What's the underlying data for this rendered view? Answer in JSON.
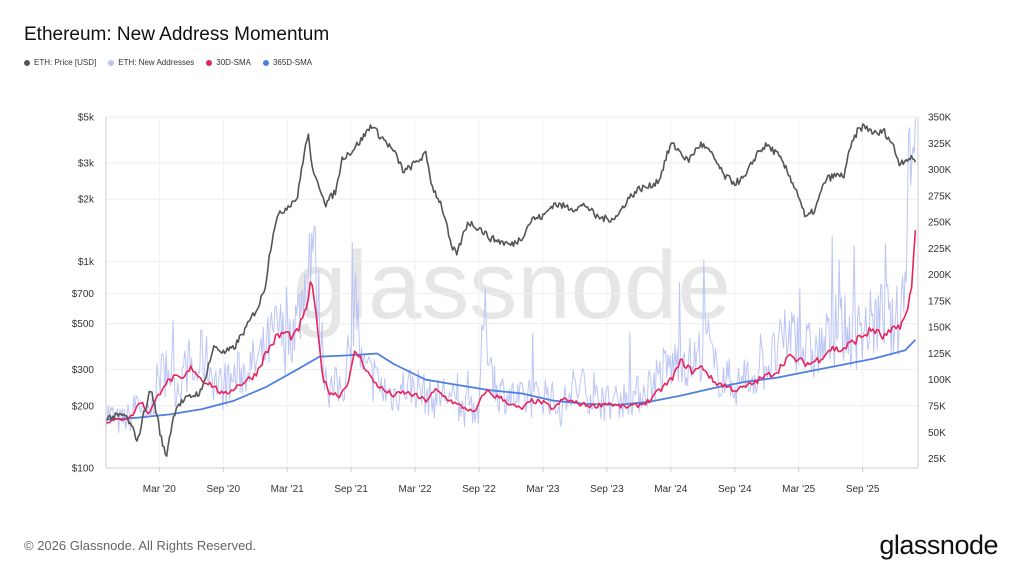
{
  "page": {
    "title": "Ethereum: New Address Momentum",
    "copyright": "© 2026 Glassnode. All Rights Reserved.",
    "logo": "glassnode",
    "watermark": "glassnode"
  },
  "chart_data": {
    "type": "line",
    "title": "Ethereum: New Address Momentum",
    "legend": [
      {
        "name": "ETH: Price [USD]",
        "color": "#555555"
      },
      {
        "name": "ETH: New Addresses",
        "color": "#b8c2f4"
      },
      {
        "name": "30D-SMA",
        "color": "#e8245b"
      },
      {
        "name": "365D-SMA",
        "color": "#4f7fe0"
      }
    ],
    "x_ticks": [
      "Mar '20",
      "Sep '20",
      "Mar '21",
      "Sep '21",
      "Mar '22",
      "Sep '22",
      "Mar '23",
      "Sep '23",
      "Mar '24",
      "Sep '24",
      "Mar '25",
      "Sep '25"
    ],
    "x_tick_t": [
      2020.167,
      2020.667,
      2021.167,
      2021.667,
      2022.167,
      2022.667,
      2023.167,
      2023.667,
      2024.167,
      2024.667,
      2025.167,
      2025.667
    ],
    "xlim": [
      2019.75,
      2026.1
    ],
    "y_left": {
      "scale": "log",
      "lim": [
        100,
        5000
      ],
      "ticks": [
        {
          "v": 5000,
          "label": "$5k"
        },
        {
          "v": 3000,
          "label": "$3k"
        },
        {
          "v": 2000,
          "label": "$2k"
        },
        {
          "v": 1000,
          "label": "$1k"
        },
        {
          "v": 700,
          "label": "$700"
        },
        {
          "v": 500,
          "label": "$500"
        },
        {
          "v": 300,
          "label": "$300"
        },
        {
          "v": 200,
          "label": "$200"
        },
        {
          "v": 100,
          "label": "$100"
        }
      ]
    },
    "y_right": {
      "scale": "linear",
      "lim": [
        16000,
        350000
      ],
      "ticks": [
        {
          "v": 350000,
          "label": "350K"
        },
        {
          "v": 325000,
          "label": "325K"
        },
        {
          "v": 300000,
          "label": "300K"
        },
        {
          "v": 275000,
          "label": "275K"
        },
        {
          "v": 250000,
          "label": "250K"
        },
        {
          "v": 225000,
          "label": "225K"
        },
        {
          "v": 200000,
          "label": "200K"
        },
        {
          "v": 175000,
          "label": "175K"
        },
        {
          "v": 150000,
          "label": "150K"
        },
        {
          "v": 125000,
          "label": "125K"
        },
        {
          "v": 100000,
          "label": "100K"
        },
        {
          "v": 75000,
          "label": "75K"
        },
        {
          "v": 50000,
          "label": "50K"
        },
        {
          "v": 25000,
          "label": "25K"
        }
      ]
    },
    "price": {
      "t": [
        2019.75,
        2019.9,
        2020.0,
        2020.1,
        2020.18,
        2020.22,
        2020.3,
        2020.4,
        2020.5,
        2020.6,
        2020.67,
        2020.75,
        2020.85,
        2020.95,
        2021.0,
        2021.08,
        2021.15,
        2021.25,
        2021.33,
        2021.37,
        2021.42,
        2021.47,
        2021.55,
        2021.6,
        2021.67,
        2021.75,
        2021.83,
        2021.87,
        2021.92,
        2022.0,
        2022.08,
        2022.17,
        2022.25,
        2022.3,
        2022.37,
        2022.45,
        2022.5,
        2022.58,
        2022.67,
        2022.75,
        2022.83,
        2022.92,
        2023.0,
        2023.08,
        2023.17,
        2023.25,
        2023.33,
        2023.42,
        2023.5,
        2023.58,
        2023.67,
        2023.75,
        2023.83,
        2023.92,
        2024.0,
        2024.08,
        2024.17,
        2024.22,
        2024.3,
        2024.4,
        2024.45,
        2024.5,
        2024.58,
        2024.67,
        2024.75,
        2024.85,
        2024.92,
        2025.0,
        2025.08,
        2025.17,
        2025.22,
        2025.3,
        2025.38,
        2025.45,
        2025.52,
        2025.58,
        2025.63,
        2025.67,
        2025.72,
        2025.78,
        2025.83,
        2025.9,
        2025.95,
        2026.02,
        2026.08
      ],
      "v": [
        175,
        180,
        135,
        240,
        140,
        112,
        200,
        220,
        235,
        390,
        360,
        380,
        480,
        620,
        780,
        1600,
        1800,
        2050,
        4100,
        2600,
        2300,
        1900,
        2200,
        3200,
        3400,
        3900,
        4600,
        4200,
        3900,
        3400,
        2700,
        3000,
        3300,
        2300,
        1900,
        1150,
        1100,
        1550,
        1450,
        1300,
        1250,
        1200,
        1300,
        1600,
        1650,
        1900,
        1850,
        1800,
        1880,
        1650,
        1600,
        1650,
        2000,
        2250,
        2300,
        2500,
        3700,
        3500,
        3050,
        3700,
        3500,
        3200,
        2600,
        2400,
        2550,
        3400,
        3650,
        3300,
        2700,
        2050,
        1600,
        1800,
        2500,
        2600,
        2600,
        3650,
        4300,
        4500,
        4350,
        4100,
        4300,
        3700,
        3000,
        3150,
        3100
      ]
    },
    "new_addresses": {
      "t": [
        2019.75,
        2019.85,
        2019.95,
        2020.0,
        2020.05,
        2020.1,
        2020.17,
        2020.25,
        2020.3,
        2020.4,
        2020.45,
        2020.5,
        2020.55,
        2020.6,
        2020.67,
        2020.75,
        2020.85,
        2020.95,
        2021.05,
        2021.1,
        2021.15,
        2021.25,
        2021.3,
        2021.36,
        2021.4,
        2021.45,
        2021.5,
        2021.6,
        2021.67,
        2021.7,
        2021.75,
        2021.8,
        2021.9,
        2022.0,
        2022.1,
        2022.2,
        2022.3,
        2022.4,
        2022.5,
        2022.55,
        2022.6,
        2022.67,
        2022.7,
        2022.8,
        2022.9,
        2023.0,
        2023.1,
        2023.2,
        2023.3,
        2023.4,
        2023.5,
        2023.6,
        2023.7,
        2023.8,
        2023.9,
        2024.0,
        2024.1,
        2024.2,
        2024.25,
        2024.3,
        2024.38,
        2024.45,
        2024.5,
        2024.6,
        2024.7,
        2024.8,
        2024.9,
        2024.95,
        2025.0,
        2025.1,
        2025.2,
        2025.3,
        2025.38,
        2025.45,
        2025.5,
        2025.6,
        2025.7,
        2025.8,
        2025.85,
        2025.9,
        2025.95,
        2025.98,
        2026.0,
        2026.02,
        2026.04,
        2026.06,
        2026.08
      ],
      "v": [
        70000,
        60000,
        65000,
        85000,
        60000,
        70000,
        105000,
        110000,
        92000,
        115000,
        100000,
        125000,
        115000,
        100000,
        90000,
        102000,
        110000,
        118000,
        140000,
        150000,
        135000,
        160000,
        185000,
        240000,
        190000,
        120000,
        90000,
        95000,
        120000,
        185000,
        110000,
        105000,
        92000,
        85000,
        95000,
        92000,
        80000,
        88000,
        75000,
        70000,
        78000,
        68000,
        165000,
        90000,
        85000,
        80000,
        82000,
        88000,
        70000,
        92000,
        90000,
        80000,
        78000,
        82000,
        85000,
        95000,
        108000,
        115000,
        125000,
        115000,
        120000,
        145000,
        110000,
        100000,
        95000,
        102000,
        115000,
        118000,
        125000,
        145000,
        130000,
        125000,
        135000,
        140000,
        150000,
        140000,
        150000,
        158000,
        165000,
        145000,
        160000,
        175000,
        210000,
        300000,
        330000,
        270000,
        330000
      ]
    },
    "sma30": {
      "t": [
        2019.75,
        2019.85,
        2019.95,
        2020.02,
        2020.08,
        2020.13,
        2020.2,
        2020.28,
        2020.35,
        2020.42,
        2020.5,
        2020.58,
        2020.67,
        2020.75,
        2020.83,
        2020.92,
        2021.0,
        2021.08,
        2021.15,
        2021.22,
        2021.3,
        2021.36,
        2021.4,
        2021.45,
        2021.5,
        2021.58,
        2021.65,
        2021.7,
        2021.75,
        2021.83,
        2021.92,
        2022.0,
        2022.08,
        2022.17,
        2022.25,
        2022.33,
        2022.42,
        2022.5,
        2022.58,
        2022.63,
        2022.67,
        2022.72,
        2022.78,
        2022.85,
        2022.92,
        2023.0,
        2023.08,
        2023.17,
        2023.25,
        2023.33,
        2023.42,
        2023.5,
        2023.58,
        2023.67,
        2023.75,
        2023.83,
        2023.92,
        2024.0,
        2024.08,
        2024.17,
        2024.25,
        2024.33,
        2024.42,
        2024.5,
        2024.58,
        2024.67,
        2024.75,
        2024.83,
        2024.92,
        2025.0,
        2025.08,
        2025.17,
        2025.25,
        2025.33,
        2025.42,
        2025.5,
        2025.58,
        2025.67,
        2025.75,
        2025.83,
        2025.92,
        2025.98,
        2026.02,
        2026.05,
        2026.08
      ],
      "v": [
        60000,
        62000,
        65000,
        80000,
        68000,
        78000,
        95000,
        102000,
        100000,
        112000,
        100000,
        95000,
        85000,
        92000,
        98000,
        105000,
        125000,
        140000,
        145000,
        140000,
        160000,
        195000,
        150000,
        100000,
        88000,
        85000,
        100000,
        128000,
        118000,
        100000,
        90000,
        85000,
        88000,
        85000,
        80000,
        90000,
        82000,
        76000,
        72000,
        68000,
        78000,
        90000,
        85000,
        82000,
        76000,
        72000,
        80000,
        78000,
        72000,
        82000,
        78000,
        76000,
        75000,
        78000,
        75000,
        74000,
        76000,
        80000,
        90000,
        100000,
        118000,
        108000,
        112000,
        98000,
        95000,
        90000,
        93000,
        98000,
        104000,
        108000,
        122000,
        118000,
        115000,
        120000,
        130000,
        128000,
        135000,
        142000,
        148000,
        140000,
        148000,
        155000,
        165000,
        190000,
        240000
      ]
    },
    "sma365": {
      "t": [
        2019.75,
        2020.0,
        2020.25,
        2020.5,
        2020.75,
        2021.0,
        2021.25,
        2021.42,
        2021.6,
        2021.75,
        2021.87,
        2022.0,
        2022.25,
        2022.5,
        2022.75,
        2023.0,
        2023.25,
        2023.5,
        2023.75,
        2024.0,
        2024.25,
        2024.5,
        2024.75,
        2025.0,
        2025.25,
        2025.5,
        2025.75,
        2026.0,
        2026.08
      ],
      "v": [
        62000,
        64000,
        67000,
        72000,
        80000,
        93000,
        110000,
        122000,
        123000,
        124000,
        125000,
        115000,
        100000,
        95000,
        90000,
        87000,
        80000,
        77000,
        76000,
        79000,
        85000,
        92000,
        98000,
        102000,
        108000,
        114000,
        120000,
        128000,
        138000
      ]
    }
  }
}
